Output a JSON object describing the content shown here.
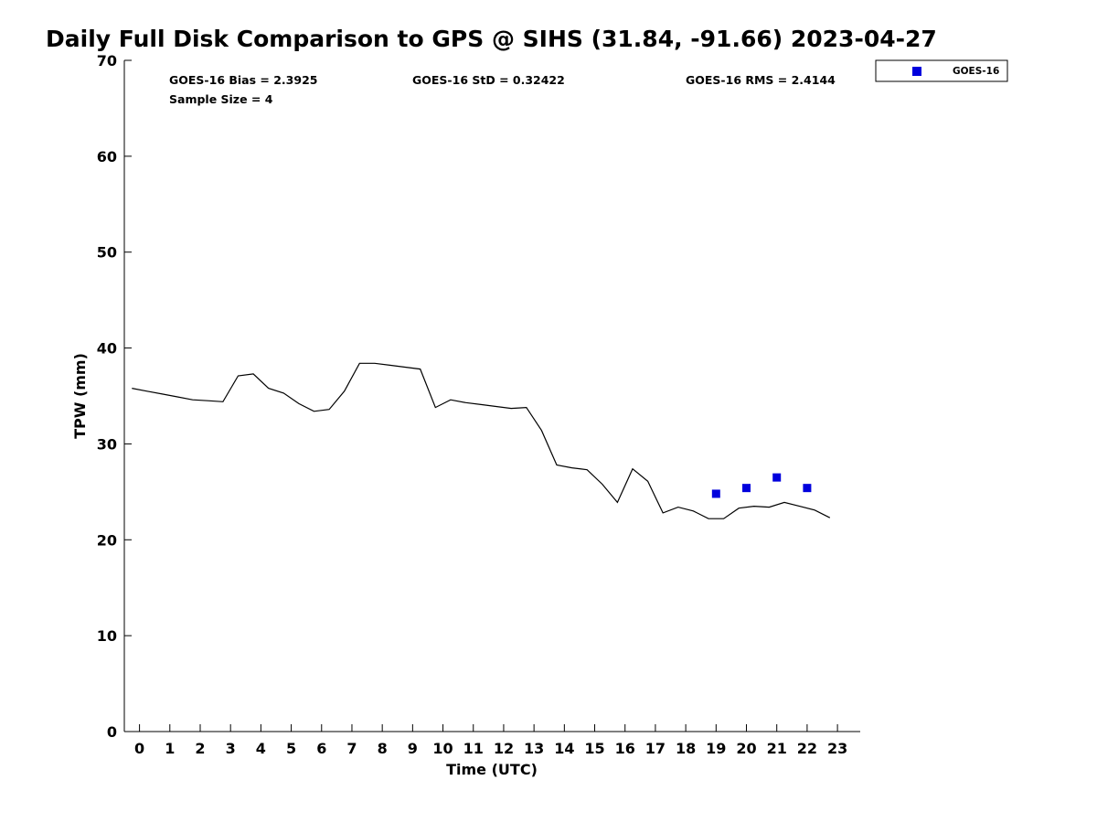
{
  "chart_data": {
    "type": "scatter",
    "title": "Daily Full Disk Comparison to GPS @ SIHS (31.84, -91.66) 2023-04-27",
    "xlabel": "Time (UTC)",
    "ylabel": "TPW (mm)",
    "xlim": [
      -0.5,
      23.75
    ],
    "ylim": [
      0,
      70
    ],
    "xticks": [
      "0",
      "1",
      "2",
      "3",
      "4",
      "5",
      "6",
      "7",
      "8",
      "9",
      "10",
      "11",
      "12",
      "13",
      "14",
      "15",
      "16",
      "17",
      "18",
      "19",
      "20",
      "21",
      "22",
      "23"
    ],
    "yticks": [
      "0",
      "10",
      "20",
      "30",
      "40",
      "50",
      "60",
      "70"
    ],
    "grid": false,
    "legend_position": "top-right outside",
    "stats": {
      "bias": "GOES-16 Bias = 2.3925",
      "std": "GOES-16 StD = 0.32422",
      "rms": "GOES-16 RMS = 2.4144",
      "sample": "Sample Size = 4"
    },
    "series": [
      {
        "kind": "line",
        "color": "#000000",
        "x": [
          -0.25,
          0.25,
          0.75,
          1.25,
          1.75,
          2.25,
          2.75,
          3.25,
          3.75,
          4.25,
          4.75,
          5.25,
          5.75,
          6.25,
          6.75,
          7.25,
          7.75,
          8.25,
          8.75,
          9.25,
          9.75,
          10.25,
          10.75,
          11.25,
          11.75,
          12.25,
          12.75,
          13.25,
          13.75,
          14.25,
          14.75,
          15.25,
          15.75,
          16.25,
          16.75,
          17.25,
          17.75,
          18.25,
          18.75,
          19.25,
          19.75,
          20.25,
          20.75,
          21.25,
          21.75,
          22.25,
          22.75
        ],
        "y": [
          35.8,
          35.5,
          35.2,
          34.9,
          34.6,
          34.5,
          34.4,
          37.1,
          37.3,
          35.8,
          35.3,
          34.2,
          33.4,
          33.6,
          35.5,
          38.4,
          38.4,
          38.2,
          38.0,
          37.8,
          33.8,
          34.6,
          34.3,
          34.1,
          33.9,
          33.7,
          33.8,
          31.4,
          27.8,
          27.5,
          27.3,
          25.8,
          23.9,
          27.4,
          26.1,
          22.8,
          23.4,
          23.0,
          22.2,
          22.2,
          23.3,
          23.5,
          23.4,
          23.9,
          23.5,
          23.1,
          22.3
        ]
      },
      {
        "name": "GOES-16",
        "kind": "markers",
        "color": "#0000dd",
        "x": [
          19,
          20,
          21,
          22
        ],
        "y": [
          24.8,
          25.4,
          26.5,
          25.4
        ]
      }
    ]
  }
}
